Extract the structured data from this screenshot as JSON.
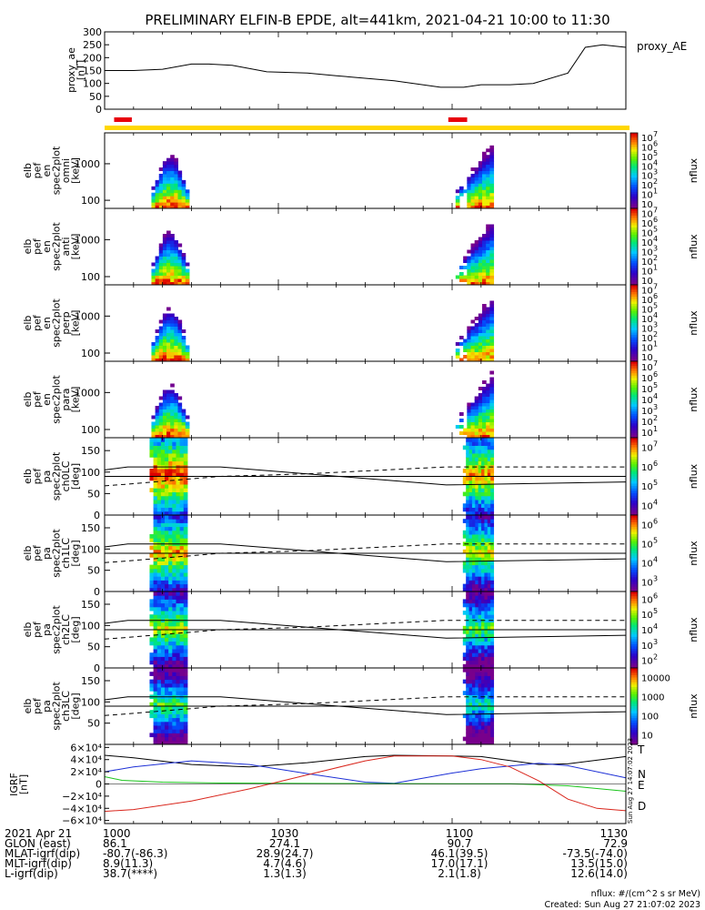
{
  "title": "PRELIMINARY ELFIN-B EPDE, alt=441km, 2021-04-21 10:00 to 11:30",
  "colors": {
    "sci_bar": "#ffd700",
    "sci_zone": "#e8000b",
    "grf_t": "#000000",
    "grf_n": "#1c2fd6",
    "grf_e": "#19c41b",
    "grf_d": "#d9261c"
  },
  "panels": {
    "ae": {
      "ylabel_lines": [
        "proxy_ae",
        "[nT]"
      ],
      "yticks": [
        "300",
        "250",
        "200",
        "150",
        "100",
        "50",
        "0"
      ],
      "legend": "proxy_AE"
    },
    "omni": {
      "ylabel_lines": [
        "elb",
        "pef",
        "en",
        "spec2plot",
        "omni",
        "[keV]"
      ],
      "yticks": [
        "1000",
        "100"
      ],
      "cb_ticks": [
        "10",
        "10",
        "10",
        "10",
        "10",
        "10",
        "10",
        "10"
      ],
      "cb_exps": [
        "7",
        "6",
        "5",
        "4",
        "3",
        "2",
        "1",
        ""
      ],
      "cb_label": "nflux"
    },
    "anti": {
      "ylabel_lines": [
        "elb",
        "pef",
        "en",
        "spec2plot",
        "anti",
        "[keV]"
      ],
      "yticks": [
        "1000",
        "100"
      ],
      "cb_ticks": [
        "10",
        "10",
        "10",
        "10",
        "10",
        "10",
        "10",
        "10"
      ],
      "cb_exps": [
        "7",
        "6",
        "5",
        "4",
        "3",
        "2",
        "1",
        ""
      ],
      "cb_label": "nflux"
    },
    "perp": {
      "ylabel_lines": [
        "elb",
        "pef",
        "en",
        "spec2plot",
        "perp",
        "[keV]"
      ],
      "yticks": [
        "1000",
        "100"
      ],
      "cb_ticks": [
        "10",
        "10",
        "10",
        "10",
        "10",
        "10",
        "10",
        "10"
      ],
      "cb_exps": [
        "7",
        "6",
        "5",
        "4",
        "3",
        "2",
        "1",
        ""
      ],
      "cb_label": "nflux"
    },
    "para": {
      "ylabel_lines": [
        "elb",
        "pef",
        "en",
        "spec2plot",
        "para",
        "[keV]"
      ],
      "yticks": [
        "1000",
        "100"
      ],
      "cb_ticks": [
        "10",
        "10",
        "10",
        "10",
        "10",
        "10",
        "10"
      ],
      "cb_exps": [
        "7",
        "6",
        "5",
        "4",
        "3",
        "2",
        "1"
      ],
      "cb_label": "nflux"
    },
    "ch0": {
      "ylabel_lines": [
        "elb",
        "pef",
        "pa",
        "spec2plot",
        "ch0LC",
        "[deg]"
      ],
      "yticks": [
        "150",
        "100",
        "50",
        "0"
      ],
      "cb_ticks": [
        "10",
        "10",
        "10",
        "10"
      ],
      "cb_exps": [
        "7",
        "6",
        "5",
        "4"
      ],
      "cb_label": "nflux"
    },
    "ch1": {
      "ylabel_lines": [
        "elb",
        "pef",
        "pa",
        "spec2plot",
        "ch1LC",
        "[deg]"
      ],
      "yticks": [
        "150",
        "100",
        "50",
        "0"
      ],
      "cb_ticks": [
        "10",
        "10",
        "10",
        "10"
      ],
      "cb_exps": [
        "6",
        "5",
        "4",
        "3"
      ],
      "cb_label": "nflux"
    },
    "ch2": {
      "ylabel_lines": [
        "elb",
        "pef",
        "pa",
        "spec2plot",
        "ch2LC",
        "[deg]"
      ],
      "yticks": [
        "150",
        "100",
        "50",
        "0"
      ],
      "cb_ticks": [
        "10",
        "10",
        "10",
        "10",
        "10"
      ],
      "cb_exps": [
        "6",
        "5",
        "4",
        "3",
        "2"
      ],
      "cb_label": "nflux"
    },
    "ch3": {
      "ylabel_lines": [
        "elb",
        "pef",
        "pa",
        "spec2plot",
        "ch3LC",
        "[deg]"
      ],
      "yticks": [
        "150",
        "100",
        "50"
      ],
      "cb_ticks": [
        "10000",
        "1000",
        "100",
        "10"
      ],
      "cb_exps": [
        "",
        "",
        "",
        ""
      ],
      "cb_label": "nflux"
    },
    "grf": {
      "ylabel_lines": [
        "IGRF",
        "[nT]"
      ],
      "yticks": [
        "6×10⁴",
        "4×10⁴",
        "2×10⁴",
        "0",
        "−2×10⁴",
        "−4×10⁴",
        "−6×10⁴"
      ],
      "legend": [
        "T",
        "N",
        "E",
        "D"
      ]
    }
  },
  "footer": {
    "rows": [
      [
        "2021 Apr 21",
        "1000",
        "1030",
        "1100",
        "1130"
      ],
      [
        "GLON (east)",
        "86.1",
        "274.1",
        "90.7",
        "72.9"
      ],
      [
        "MLAT-igrf(dip)",
        "-80.7(-86.3)",
        "28.9(24.7)",
        "46.1(39.5)",
        "-73.5(-74.0)"
      ],
      [
        "MLT-igrf(dip)",
        "8.9(11.3)",
        "4.7(4.6)",
        "17.0(17.1)",
        "13.5(15.0)"
      ],
      [
        "L-igrf(dip)",
        "38.7(****)",
        "1.3(1.3)",
        "2.1(1.8)",
        "12.6(14.0)"
      ]
    ],
    "units_note": "nflux: #/(cm^2 s sr MeV)",
    "created": "Created: Sun Aug 27 21:07:02 2023",
    "side_stamp": "Sun Aug 27 14:07:02 2023"
  },
  "chart_data": [
    {
      "type": "line",
      "panel": "ae",
      "x_unit": "minutes after 10:00 UT",
      "xlim": [
        0,
        90
      ],
      "ylim": [
        0,
        300
      ],
      "ylabel": "proxy_ae [nT]",
      "series": [
        {
          "name": "proxy_AE",
          "x": [
            0,
            5,
            10,
            15,
            18,
            22,
            28,
            35,
            40,
            50,
            58,
            62,
            65,
            70,
            74,
            80,
            83,
            86,
            90
          ],
          "y": [
            150,
            150,
            155,
            175,
            175,
            170,
            145,
            140,
            130,
            110,
            85,
            85,
            95,
            95,
            100,
            140,
            240,
            250,
            240
          ]
        }
      ]
    },
    {
      "type": "heatmap",
      "panel": "energy spectrograms (omni, anti, perp, para)",
      "x_unit": "minutes after 10:00 UT",
      "xlim": [
        0,
        90
      ],
      "ylim": [
        60,
        7000
      ],
      "yscale": "log",
      "ylabel": "[keV]",
      "colorbar": {
        "label": "nflux",
        "scale": "log",
        "range": [
          10,
          10000000
        ]
      },
      "intervals": [
        [
          1.8,
          3.6
        ],
        [
          59.5,
          61.5
        ]
      ]
    },
    {
      "type": "heatmap",
      "panel": "pitch angle spectrograms (ch0LC..ch3LC)",
      "x_unit": "minutes after 10:00 UT",
      "xlim": [
        0,
        90
      ],
      "ylim": [
        0,
        180
      ],
      "ylabel": "[deg]",
      "overlay_lines": [
        {
          "style": "solid",
          "x": [
            0,
            4,
            20,
            35,
            59,
            90
          ],
          "y": [
            105,
            112,
            112,
            96,
            70,
            77
          ]
        },
        {
          "style": "dashed",
          "x": [
            0,
            4,
            20,
            35,
            59,
            90
          ],
          "y": [
            68,
            72,
            90,
            96,
            112,
            112
          ]
        },
        {
          "style": "solid",
          "x": [
            0,
            90
          ],
          "y": [
            90,
            90
          ]
        }
      ],
      "intervals": [
        [
          1.8,
          3.6
        ],
        [
          59.5,
          61.5
        ]
      ]
    },
    {
      "type": "line",
      "panel": "IGRF",
      "x_unit": "minutes after 10:00 UT",
      "xlim": [
        0,
        90
      ],
      "ylim": [
        -65000,
        65000
      ],
      "ylabel": "IGRF [nT]",
      "series": [
        {
          "name": "T",
          "x": [
            0,
            5,
            15,
            25,
            35,
            45,
            50,
            60,
            65,
            75,
            80,
            90
          ],
          "y": [
            47000,
            43000,
            32000,
            28000,
            35000,
            45000,
            47000,
            46000,
            45000,
            32000,
            33000,
            45000
          ]
        },
        {
          "name": "N",
          "x": [
            0,
            5,
            15,
            25,
            35,
            45,
            50,
            60,
            65,
            75,
            80,
            90
          ],
          "y": [
            20000,
            28000,
            38000,
            32000,
            17000,
            3000,
            1000,
            18000,
            25000,
            34000,
            30000,
            10000
          ]
        },
        {
          "name": "E",
          "x": [
            0,
            3,
            10,
            20,
            40,
            60,
            70,
            80,
            90
          ],
          "y": [
            12000,
            6000,
            3000,
            1500,
            800,
            500,
            300,
            -3000,
            -12000
          ]
        },
        {
          "name": "D",
          "x": [
            0,
            5,
            15,
            25,
            35,
            45,
            50,
            60,
            65,
            70,
            75,
            80,
            85,
            90
          ],
          "y": [
            -45000,
            -42000,
            -28000,
            -8000,
            15000,
            38000,
            46000,
            46000,
            40000,
            28000,
            5000,
            -25000,
            -40000,
            -44000
          ]
        }
      ]
    }
  ]
}
